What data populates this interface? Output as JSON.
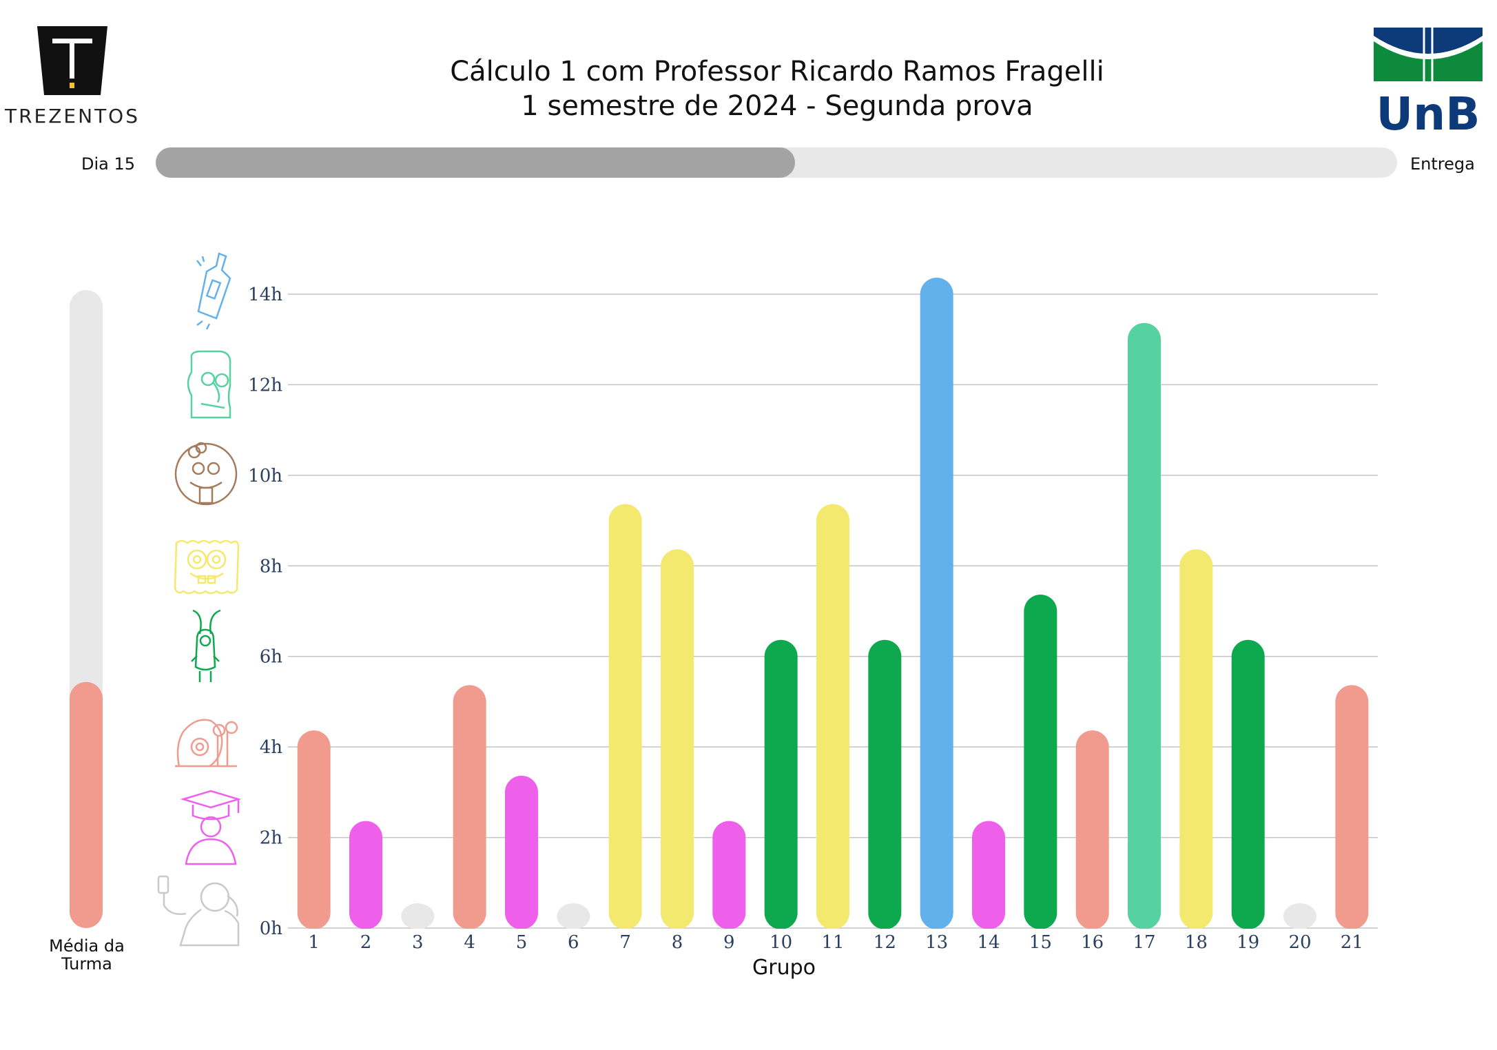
{
  "header": {
    "title_line1": "Cálculo 1 com Professor Ricardo Ramos Fragelli",
    "title_line2": "1 semestre de 2024 - Segunda prova",
    "left_logo_text": "TREZENTOS",
    "right_logo_text": "UnB"
  },
  "progress": {
    "start_label": "Dia  15",
    "end_label": "Entrega",
    "fraction": 0.515,
    "colors": {
      "fill": "#a3a3a3",
      "track": "#e8e8e8"
    }
  },
  "average": {
    "label_line1": "Média da",
    "label_line2": "Turma",
    "value": 5.4,
    "max": 14,
    "colors": {
      "fill": "#f09b8e",
      "track": "#e8e8e8"
    }
  },
  "character_icons": [
    {
      "name": "bottle-icon",
      "color": "#62b1ec",
      "level": 14
    },
    {
      "name": "squidward-icon",
      "color": "#55d2a0",
      "level": 12
    },
    {
      "name": "sandy-icon",
      "color": "#a57b5b",
      "level": 10
    },
    {
      "name": "spongebob-icon",
      "color": "#f3e96f",
      "level": 8
    },
    {
      "name": "plankton-icon",
      "color": "#0ea84e",
      "level": 6
    },
    {
      "name": "gary-icon",
      "color": "#f09b8e",
      "level": 4
    },
    {
      "name": "graduate-icon",
      "color": "#ee60ea",
      "level": 2
    },
    {
      "name": "selfie-person-icon",
      "color": "#c9c9c9",
      "level": 0
    }
  ],
  "chart_data": {
    "type": "bar",
    "xlabel": "Grupo",
    "ylabel": "",
    "ylim": [
      0,
      14
    ],
    "yticks": [
      0,
      2,
      4,
      6,
      8,
      10,
      12,
      14
    ],
    "ytick_labels": [
      "0h",
      "2h",
      "4h",
      "6h",
      "8h",
      "10h",
      "12h",
      "14h"
    ],
    "grid": true,
    "categories": [
      "1",
      "2",
      "3",
      "4",
      "5",
      "6",
      "7",
      "8",
      "9",
      "10",
      "11",
      "12",
      "13",
      "14",
      "15",
      "16",
      "17",
      "18",
      "19",
      "20",
      "21"
    ],
    "values": [
      4,
      2,
      0,
      5,
      3,
      0,
      9,
      8,
      2,
      6,
      9,
      6,
      14,
      2,
      7,
      4,
      13,
      8,
      6,
      0,
      5
    ],
    "colors": [
      "#f09b8e",
      "#ee60ea",
      "#e8e8e8",
      "#f09b8e",
      "#ee60ea",
      "#e8e8e8",
      "#f3e96f",
      "#f3e96f",
      "#ee60ea",
      "#0ea84e",
      "#f3e96f",
      "#0ea84e",
      "#62b1ec",
      "#ee60ea",
      "#0ea84e",
      "#f09b8e",
      "#55d2a0",
      "#f3e96f",
      "#0ea84e",
      "#e8e8e8",
      "#f09b8e"
    ]
  }
}
